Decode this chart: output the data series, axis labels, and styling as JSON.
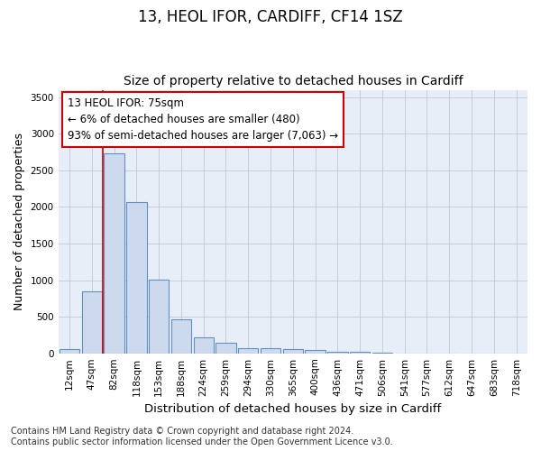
{
  "title1": "13, HEOL IFOR, CARDIFF, CF14 1SZ",
  "title2": "Size of property relative to detached houses in Cardiff",
  "xlabel": "Distribution of detached houses by size in Cardiff",
  "ylabel": "Number of detached properties",
  "categories": [
    "12sqm",
    "47sqm",
    "82sqm",
    "118sqm",
    "153sqm",
    "188sqm",
    "224sqm",
    "259sqm",
    "294sqm",
    "330sqm",
    "365sqm",
    "400sqm",
    "436sqm",
    "471sqm",
    "506sqm",
    "541sqm",
    "577sqm",
    "612sqm",
    "647sqm",
    "683sqm",
    "718sqm"
  ],
  "bar_heights": [
    55,
    850,
    2730,
    2070,
    1010,
    460,
    215,
    150,
    65,
    65,
    55,
    40,
    25,
    20,
    5,
    0,
    0,
    0,
    0,
    0,
    0
  ],
  "bar_color": "#cdd9ed",
  "bar_edge_color": "#6090c8",
  "vline_x": 1.5,
  "vline_color": "#cc0000",
  "annotation_text": "13 HEOL IFOR: 75sqm\n← 6% of detached houses are smaller (480)\n93% of semi-detached houses are larger (7,063) →",
  "annotation_box_color": "#ffffff",
  "annotation_box_edge": "#cc0000",
  "ylim": [
    0,
    3600
  ],
  "yticks": [
    0,
    500,
    1000,
    1500,
    2000,
    2500,
    3000,
    3500
  ],
  "bg_color": "#e8eef8",
  "footnote": "Contains HM Land Registry data © Crown copyright and database right 2024.\nContains public sector information licensed under the Open Government Licence v3.0.",
  "title1_fontsize": 12,
  "title2_fontsize": 10,
  "xlabel_fontsize": 9.5,
  "ylabel_fontsize": 9,
  "tick_fontsize": 7.5,
  "annotation_fontsize": 8.5,
  "footnote_fontsize": 7
}
